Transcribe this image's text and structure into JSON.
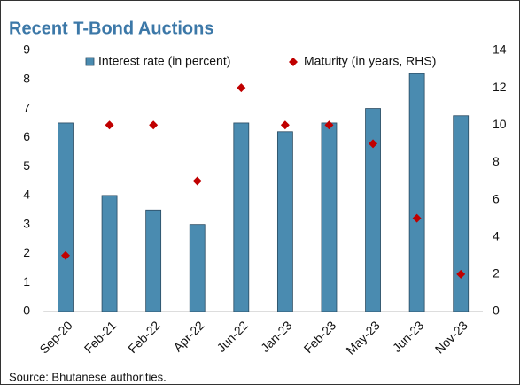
{
  "chart_data": {
    "type": "bar_dot",
    "title": "Recent T-Bond Auctions",
    "source": "Source: Bhutanese authorities.",
    "categories": [
      "Sep-20",
      "Feb-21",
      "Feb-22",
      "Apr-22",
      "Jun-22",
      "Jan-23",
      "Feb-23",
      "May-23",
      "Jun-23",
      "Nov-23"
    ],
    "series": [
      {
        "name": "Interest rate (in percent)",
        "color": "#4a8bb0",
        "values": [
          6.5,
          4.0,
          3.5,
          3.0,
          6.5,
          6.2,
          6.5,
          7.0,
          8.2,
          6.75
        ]
      },
      {
        "name": "Maturity (in years, RHS)",
        "color": "#c00000",
        "axis": "y2",
        "values": [
          3,
          10,
          10,
          7,
          12,
          10,
          10,
          9,
          5,
          2
        ]
      }
    ],
    "ylim": [
      0,
      9
    ],
    "yticks": [
      0,
      1,
      2,
      3,
      4,
      5,
      6,
      7,
      8,
      9
    ],
    "y2lim": [
      0,
      14
    ],
    "y2ticks": [
      0,
      2,
      4,
      6,
      8,
      10,
      12,
      14
    ],
    "grid": false
  }
}
